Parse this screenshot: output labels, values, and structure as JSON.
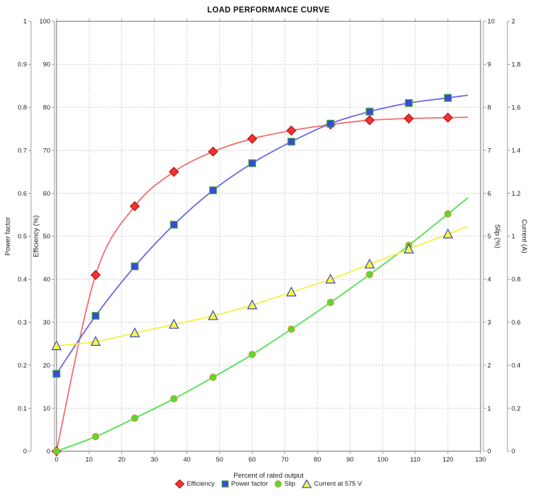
{
  "chart_data": {
    "type": "line",
    "title": "LOAD PERFORMANCE CURVE",
    "x": [
      0,
      12,
      24,
      36,
      48,
      60,
      72,
      84,
      96,
      108,
      120
    ],
    "series": [
      {
        "name": "Efficiency",
        "axis": "efficiency",
        "marker": "diamond",
        "marker_fill": "#ee3333",
        "marker_edge": "#bb1111",
        "line_color": "#f47070",
        "values": [
          0,
          41,
          57,
          65,
          69.7,
          72.7,
          74.6,
          76,
          77,
          77.4,
          77.6
        ]
      },
      {
        "name": "Power factor",
        "axis": "power_factor",
        "marker": "square",
        "marker_fill": "#3b49d8",
        "marker_edge": "#3faa3f",
        "line_color": "#6a6ae8",
        "values": [
          0.18,
          0.315,
          0.43,
          0.527,
          0.607,
          0.67,
          0.72,
          0.762,
          0.79,
          0.81,
          0.822
        ]
      },
      {
        "name": "Slip",
        "axis": "slip",
        "marker": "circle",
        "marker_fill": "#55d93b",
        "marker_edge": "#dd9922",
        "line_color": "#55e055",
        "values": [
          0,
          0.34,
          0.77,
          1.22,
          1.72,
          2.25,
          2.84,
          3.46,
          4.11,
          4.79,
          5.52
        ]
      },
      {
        "name": "Current at 575 V",
        "axis": "current",
        "marker": "triangle",
        "marker_fill": "#f6f644",
        "marker_edge": "#3344cc",
        "line_color": "#f3f344",
        "values": [
          0.49,
          0.51,
          0.55,
          0.59,
          0.63,
          0.68,
          0.74,
          0.8,
          0.87,
          0.94,
          1.01
        ]
      }
    ],
    "axes": {
      "x": {
        "label": "Percent of rated output",
        "min": 0,
        "max": 130,
        "step": 10
      },
      "power_factor": {
        "label": "Power factor",
        "min": 0,
        "max": 1,
        "step": 0.1
      },
      "efficiency": {
        "label": "Efficiency (%)",
        "min": 0,
        "max": 100,
        "step": 10
      },
      "slip": {
        "label": "Slip (%)",
        "min": 0,
        "max": 10,
        "step": 1
      },
      "current": {
        "label": "Current (A)",
        "min": 0,
        "max": 2,
        "step": 0.2
      }
    },
    "legend_position": "bottom",
    "grid": true,
    "colors": {
      "grid": "#cccccc",
      "axis": "#999999",
      "plot_border": "#666666",
      "tick_text": "#222222",
      "background": "#ffffff"
    }
  }
}
